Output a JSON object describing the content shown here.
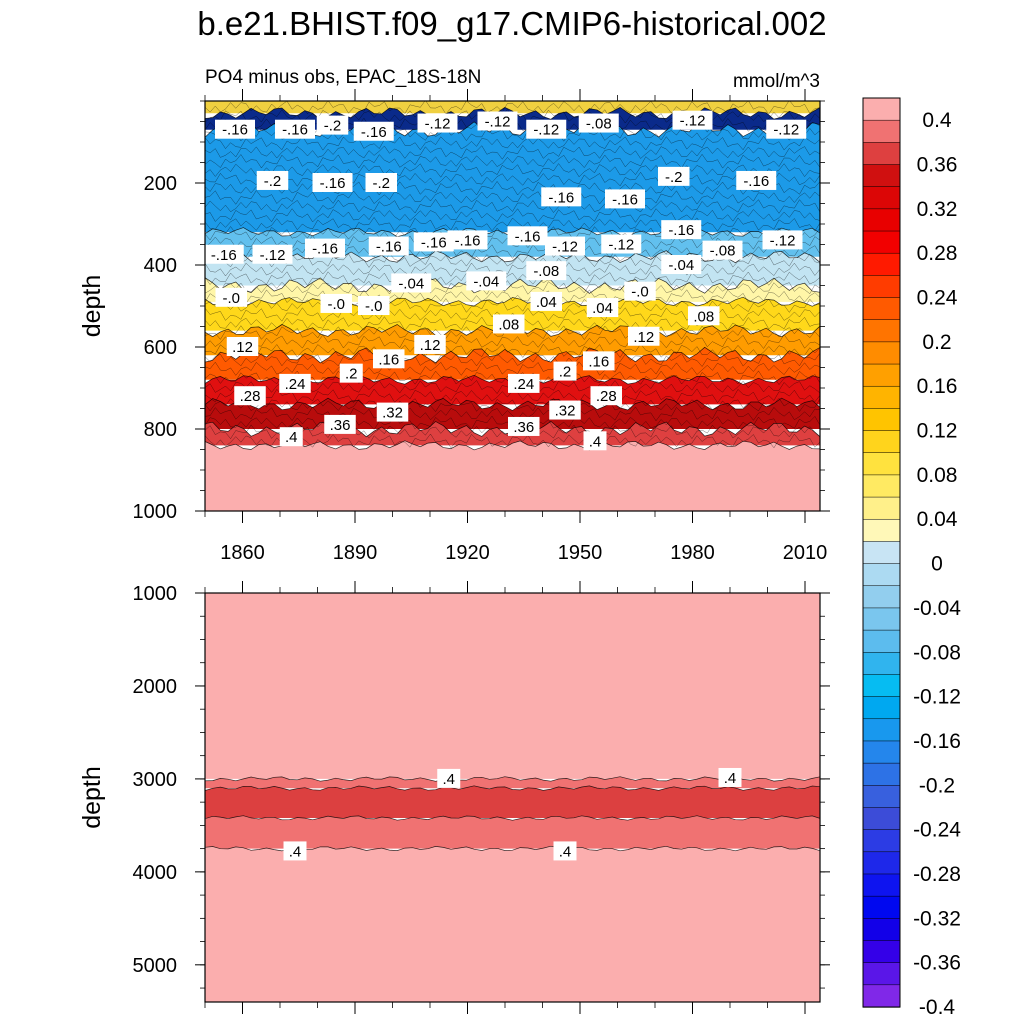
{
  "chart_data": {
    "type": "heatmap",
    "title": "b.e21.BHIST.f09_g17.CMIP6-historical.002",
    "subtitle_left": "PO4 minus obs, EPAC_18S-18N",
    "units": "mmol/m^3",
    "xlim": [
      1850,
      2014
    ],
    "x_ticks": [
      1860,
      1890,
      1920,
      1950,
      1980,
      2010
    ],
    "panels": [
      {
        "name": "upper",
        "ylabel": "depth",
        "ylim": [
          0,
          1000
        ],
        "y_ticks": [
          200,
          400,
          600,
          800,
          1000
        ],
        "bands": [
          {
            "top": 0,
            "bottom": 30,
            "color": "#f0d040"
          },
          {
            "top": 30,
            "bottom": 70,
            "color": "#0a2a8a"
          },
          {
            "top": 70,
            "bottom": 320,
            "color": "#1c9ae8"
          },
          {
            "top": 320,
            "bottom": 380,
            "color": "#62c0ee"
          },
          {
            "top": 380,
            "bottom": 450,
            "color": "#c2e4f2"
          },
          {
            "top": 450,
            "bottom": 490,
            "color": "#fff6a8"
          },
          {
            "top": 490,
            "bottom": 560,
            "color": "#ffd81a"
          },
          {
            "top": 560,
            "bottom": 620,
            "color": "#ff9c00"
          },
          {
            "top": 620,
            "bottom": 680,
            "color": "#ff5a00"
          },
          {
            "top": 680,
            "bottom": 740,
            "color": "#e01010"
          },
          {
            "top": 740,
            "bottom": 800,
            "color": "#b80c0c"
          },
          {
            "top": 800,
            "bottom": 840,
            "color": "#de4040"
          },
          {
            "top": 840,
            "bottom": 1000,
            "color": "#fbaeae"
          }
        ],
        "labels": [
          {
            "text": "-.16",
            "x": 1858,
            "y": 70
          },
          {
            "text": "-.16",
            "x": 1874,
            "y": 70
          },
          {
            "text": "-.2",
            "x": 1884,
            "y": 60
          },
          {
            "text": "-.16",
            "x": 1895,
            "y": 75
          },
          {
            "text": "-.12",
            "x": 1912,
            "y": 55
          },
          {
            "text": "-.12",
            "x": 1928,
            "y": 50
          },
          {
            "text": "-.12",
            "x": 1941,
            "y": 70
          },
          {
            "text": "-.08",
            "x": 1955,
            "y": 55
          },
          {
            "text": "-.12",
            "x": 1980,
            "y": 48
          },
          {
            "text": "-.12",
            "x": 2005,
            "y": 70
          },
          {
            "text": "-.2",
            "x": 1868,
            "y": 195
          },
          {
            "text": "-.16",
            "x": 1884,
            "y": 200
          },
          {
            "text": "-.2",
            "x": 1897,
            "y": 200
          },
          {
            "text": "-.16",
            "x": 1945,
            "y": 235
          },
          {
            "text": "-.16",
            "x": 1962,
            "y": 240
          },
          {
            "text": "-.2",
            "x": 1975,
            "y": 185
          },
          {
            "text": "-.16",
            "x": 1997,
            "y": 195
          },
          {
            "text": "-.16",
            "x": 1855,
            "y": 375
          },
          {
            "text": "-.12",
            "x": 1868,
            "y": 375
          },
          {
            "text": "-.16",
            "x": 1882,
            "y": 360
          },
          {
            "text": "-.16",
            "x": 1899,
            "y": 355
          },
          {
            "text": "-.16",
            "x": 1911,
            "y": 345
          },
          {
            "text": "-.16",
            "x": 1920,
            "y": 340
          },
          {
            "text": "-.16",
            "x": 1936,
            "y": 330
          },
          {
            "text": "-.12",
            "x": 1946,
            "y": 355
          },
          {
            "text": "-.12",
            "x": 1961,
            "y": 350
          },
          {
            "text": "-.16",
            "x": 1977,
            "y": 315
          },
          {
            "text": "-.08",
            "x": 1988,
            "y": 365
          },
          {
            "text": "-.12",
            "x": 2004,
            "y": 340
          },
          {
            "text": "-.04",
            "x": 1977,
            "y": 400
          },
          {
            "text": "-.08",
            "x": 1941,
            "y": 415
          },
          {
            "text": "-.04",
            "x": 1905,
            "y": 445
          },
          {
            "text": "-.04",
            "x": 1925,
            "y": 440
          },
          {
            "text": "-.0",
            "x": 1857,
            "y": 480
          },
          {
            "text": "-.0",
            "x": 1885,
            "y": 495
          },
          {
            "text": "-.0",
            "x": 1895,
            "y": 500
          },
          {
            "text": "-.0",
            "x": 1966,
            "y": 465
          },
          {
            "text": ".04",
            "x": 1941,
            "y": 490
          },
          {
            "text": ".04",
            "x": 1956,
            "y": 505
          },
          {
            "text": ".08",
            "x": 1931,
            "y": 545
          },
          {
            "text": ".08",
            "x": 1983,
            "y": 525
          },
          {
            "text": ".12",
            "x": 1860,
            "y": 600
          },
          {
            "text": ".12",
            "x": 1910,
            "y": 595
          },
          {
            "text": ".12",
            "x": 1967,
            "y": 575
          },
          {
            "text": ".16",
            "x": 1899,
            "y": 630
          },
          {
            "text": ".16",
            "x": 1955,
            "y": 635
          },
          {
            "text": ".2",
            "x": 1889,
            "y": 665
          },
          {
            "text": ".2",
            "x": 1946,
            "y": 660
          },
          {
            "text": ".24",
            "x": 1874,
            "y": 690
          },
          {
            "text": ".24",
            "x": 1935,
            "y": 690
          },
          {
            "text": ".28",
            "x": 1862,
            "y": 720
          },
          {
            "text": ".28",
            "x": 1957,
            "y": 720
          },
          {
            "text": ".32",
            "x": 1900,
            "y": 760
          },
          {
            "text": ".32",
            "x": 1946,
            "y": 755
          },
          {
            "text": ".36",
            "x": 1886,
            "y": 790
          },
          {
            "text": ".36",
            "x": 1935,
            "y": 795
          },
          {
            "text": ".4",
            "x": 1873,
            "y": 820
          },
          {
            "text": ".4",
            "x": 1954,
            "y": 830
          }
        ]
      },
      {
        "name": "lower",
        "ylabel": "depth",
        "ylim": [
          1000,
          5400
        ],
        "y_ticks": [
          1000,
          2000,
          3000,
          4000,
          5000
        ],
        "bands": [
          {
            "top": 1000,
            "bottom": 3000,
            "color": "#fbaeae"
          },
          {
            "top": 3000,
            "bottom": 3100,
            "color": "#f07272"
          },
          {
            "top": 3100,
            "bottom": 3420,
            "color": "#dc4040"
          },
          {
            "top": 3420,
            "bottom": 3750,
            "color": "#f07272"
          },
          {
            "top": 3750,
            "bottom": 5400,
            "color": "#fbaeae"
          }
        ],
        "labels": [
          {
            "text": ".4",
            "x": 1915,
            "y": 3000
          },
          {
            "text": ".4",
            "x": 1990,
            "y": 2990
          },
          {
            "text": ".4",
            "x": 1874,
            "y": 3780
          },
          {
            "text": ".4",
            "x": 1946,
            "y": 3780
          }
        ]
      }
    ],
    "colorbar": {
      "levels": [
        "0.4",
        "0.36",
        "0.32",
        "0.28",
        "0.24",
        "0.2",
        "0.16",
        "0.12",
        "0.08",
        "0.04",
        "0",
        "-0.04",
        "-0.08",
        "-0.12",
        "-0.16",
        "-0.2",
        "-0.24",
        "-0.28",
        "-0.32",
        "-0.36",
        "-0.4"
      ],
      "colors": [
        "#fbaeae",
        "#f07272",
        "#de4040",
        "#d01010",
        "#dc0606",
        "#e80000",
        "#f20000",
        "#ff1a00",
        "#ff3c00",
        "#ff5a00",
        "#ff7400",
        "#ff8c00",
        "#ffa000",
        "#ffb400",
        "#ffc400",
        "#ffd41c",
        "#ffe23e",
        "#ffea62",
        "#fff08a",
        "#fff8b8",
        "#c8e4f4",
        "#acdaf2",
        "#92ceee",
        "#7ac6ee",
        "#5cbcee",
        "#30b4ee",
        "#06bcf2",
        "#00a8f0",
        "#1898ee",
        "#2486ec",
        "#2d72e6",
        "#3860de",
        "#3c4cd8",
        "#2c3ce4",
        "#1e28ea",
        "#0e14f0",
        "#0008f0",
        "#1200e8",
        "#3400e8",
        "#5a16e8",
        "#8028e8"
      ]
    }
  }
}
